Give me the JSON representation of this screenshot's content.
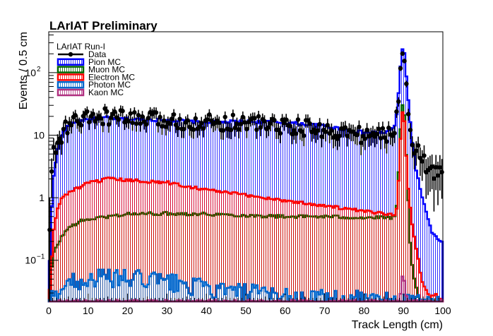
{
  "chart_data": {
    "type": "histogram",
    "title": "LArIAT Preliminary",
    "xlabel": "Track Length (cm)",
    "ylabel": "Events / 0.5 cm",
    "xlim": [
      0,
      100
    ],
    "ylim": [
      0.022,
      450
    ],
    "yscale": "log",
    "grid": false,
    "legend_placement": "top-left",
    "legend_header": "LArIAT Run-I",
    "bin_width": 0.5,
    "x_ticks": [
      "0",
      "10",
      "20",
      "30",
      "40",
      "50",
      "60",
      "70",
      "80",
      "90",
      "100"
    ],
    "y_ticks": [
      {
        "value": 0.1,
        "label": "10",
        "exp": "−1"
      },
      {
        "value": 1,
        "label": "1",
        "exp": ""
      },
      {
        "value": 10,
        "label": "10",
        "exp": ""
      },
      {
        "value": 100,
        "label": "10",
        "exp": "2"
      }
    ],
    "series": [
      {
        "name": "Pion MC",
        "color": "#0000ff",
        "style": "hatched-step",
        "profile": [
          [
            0,
            0.03
          ],
          [
            0.5,
            0.3
          ],
          [
            1,
            1.8
          ],
          [
            2,
            5
          ],
          [
            3,
            9
          ],
          [
            4,
            12
          ],
          [
            5,
            14
          ],
          [
            7,
            17
          ],
          [
            10,
            18
          ],
          [
            15,
            19
          ],
          [
            20,
            18
          ],
          [
            30,
            17.5
          ],
          [
            40,
            16
          ],
          [
            50,
            16.5
          ],
          [
            60,
            16
          ],
          [
            70,
            14
          ],
          [
            80,
            11
          ],
          [
            85,
            11
          ],
          [
            87,
            12
          ],
          [
            88,
            15
          ],
          [
            89,
            70
          ],
          [
            89.5,
            200
          ],
          [
            90,
            270
          ],
          [
            90.5,
            150
          ],
          [
            91,
            55
          ],
          [
            91.5,
            25
          ],
          [
            92,
            10
          ],
          [
            93,
            3.5
          ],
          [
            94,
            1.6
          ],
          [
            95,
            0.9
          ],
          [
            96,
            0.5
          ],
          [
            97,
            0.3
          ],
          [
            98,
            0.25
          ],
          [
            99,
            0.2
          ],
          [
            100,
            0.2
          ]
        ]
      },
      {
        "name": "Muon MC",
        "color": "#006400",
        "style": "hatched-step",
        "profile": [
          [
            0,
            0.022
          ],
          [
            0.5,
            0.05
          ],
          [
            1,
            0.12
          ],
          [
            2,
            0.17
          ],
          [
            3,
            0.22
          ],
          [
            4,
            0.28
          ],
          [
            5,
            0.32
          ],
          [
            6,
            0.36
          ],
          [
            8,
            0.42
          ],
          [
            10,
            0.45
          ],
          [
            15,
            0.5
          ],
          [
            20,
            0.55
          ],
          [
            30,
            0.56
          ],
          [
            40,
            0.55
          ],
          [
            50,
            0.52
          ],
          [
            60,
            0.5
          ],
          [
            70,
            0.5
          ],
          [
            80,
            0.48
          ],
          [
            87,
            0.48
          ],
          [
            88,
            0.5
          ],
          [
            88.5,
            1
          ],
          [
            89,
            6
          ],
          [
            89.5,
            25
          ],
          [
            90,
            34
          ],
          [
            90.5,
            12
          ],
          [
            91,
            2
          ],
          [
            91.5,
            0.4
          ],
          [
            92,
            0.1
          ],
          [
            93,
            0.04
          ],
          [
            94,
            0.022
          ],
          [
            100,
            0.022
          ]
        ]
      },
      {
        "name": "Electron MC",
        "color": "#ff0000",
        "style": "hatched-step",
        "profile": [
          [
            0,
            0.022
          ],
          [
            0.5,
            0.05
          ],
          [
            1,
            0.25
          ],
          [
            2,
            0.6
          ],
          [
            3,
            0.9
          ],
          [
            4,
            1.1
          ],
          [
            5,
            1.2
          ],
          [
            7,
            1.4
          ],
          [
            10,
            1.7
          ],
          [
            15,
            2.0
          ],
          [
            20,
            1.9
          ],
          [
            30,
            1.75
          ],
          [
            40,
            1.35
          ],
          [
            50,
            1.1
          ],
          [
            60,
            0.9
          ],
          [
            65,
            0.82
          ],
          [
            70,
            0.75
          ],
          [
            80,
            0.6
          ],
          [
            87,
            0.55
          ],
          [
            88,
            0.55
          ],
          [
            88.5,
            0.8
          ],
          [
            89,
            4
          ],
          [
            89.5,
            18
          ],
          [
            90,
            28
          ],
          [
            90.5,
            10
          ],
          [
            91,
            2
          ],
          [
            92,
            0.5
          ],
          [
            93,
            0.2
          ],
          [
            94,
            0.08
          ],
          [
            95,
            0.04
          ],
          [
            96,
            0.032
          ],
          [
            97,
            0.025
          ],
          [
            98,
            0.03
          ],
          [
            99,
            0.024
          ],
          [
            100,
            0.022
          ]
        ]
      },
      {
        "name": "Photon MC",
        "color": "#0066cc",
        "style": "hatched-step",
        "profile": [
          [
            0,
            0.022
          ],
          [
            1,
            0.025
          ],
          [
            2,
            0.028
          ],
          [
            3,
            0.035
          ],
          [
            4,
            0.04
          ],
          [
            5,
            0.045
          ],
          [
            10,
            0.05
          ],
          [
            15,
            0.052
          ],
          [
            20,
            0.05
          ],
          [
            25,
            0.05
          ],
          [
            30,
            0.045
          ],
          [
            35,
            0.04
          ],
          [
            40,
            0.035
          ],
          [
            45,
            0.032
          ],
          [
            50,
            0.03
          ],
          [
            55,
            0.028
          ],
          [
            60,
            0.027
          ],
          [
            65,
            0.025
          ],
          [
            70,
            0.024
          ],
          [
            75,
            0.024
          ],
          [
            80,
            0.023
          ],
          [
            85,
            0.022
          ],
          [
            100,
            0.022
          ]
        ]
      },
      {
        "name": "Kaon MC",
        "color": "#b03080",
        "style": "hatched-step",
        "profile": [
          [
            0,
            0.022
          ],
          [
            89,
            0.022
          ],
          [
            89.5,
            0.04
          ],
          [
            90,
            0.07
          ],
          [
            90.5,
            0.03
          ],
          [
            91,
            0.022
          ],
          [
            100,
            0.022
          ]
        ]
      }
    ],
    "data_series": {
      "name": "Data",
      "color": "#000000",
      "style": "points-with-errors",
      "profile": [
        [
          0,
          0.03
        ],
        [
          0.5,
          2
        ],
        [
          1,
          5
        ],
        [
          2,
          6
        ],
        [
          3,
          9
        ],
        [
          4,
          12
        ],
        [
          5,
          14
        ],
        [
          7,
          17
        ],
        [
          10,
          18
        ],
        [
          15,
          20
        ],
        [
          20,
          18
        ],
        [
          30,
          17
        ],
        [
          40,
          16
        ],
        [
          50,
          16
        ],
        [
          60,
          14
        ],
        [
          70,
          12
        ],
        [
          80,
          10
        ],
        [
          85,
          10
        ],
        [
          87,
          11
        ],
        [
          88,
          12
        ],
        [
          89,
          65
        ],
        [
          89.5,
          180
        ],
        [
          90,
          260
        ],
        [
          90.5,
          140
        ],
        [
          91,
          40
        ],
        [
          91.5,
          20
        ],
        [
          92,
          10
        ],
        [
          93,
          6
        ],
        [
          94,
          5
        ],
        [
          95,
          4
        ],
        [
          96,
          3
        ],
        [
          97,
          2.5
        ],
        [
          98,
          2.5
        ],
        [
          99,
          2.5
        ],
        [
          100,
          2.5
        ]
      ]
    }
  }
}
